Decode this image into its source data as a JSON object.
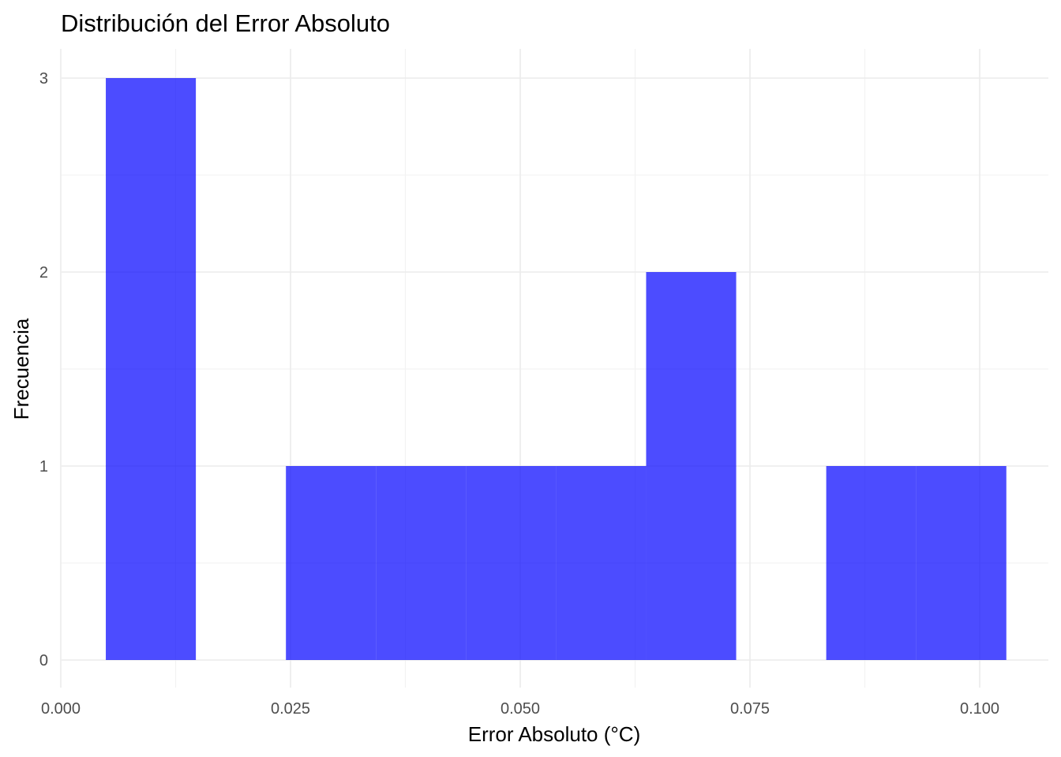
{
  "chart_data": {
    "type": "bar",
    "subtype": "histogram",
    "title": "Distribución del Error Absoluto",
    "xlabel": "Error Absoluto (°C)",
    "ylabel": "Frecuencia",
    "xlim": [
      0.0,
      0.1
    ],
    "ylim": [
      0,
      3
    ],
    "x_ticks": [
      0.0,
      0.025,
      0.05,
      0.075,
      0.1
    ],
    "x_tick_labels": [
      "0.000",
      "0.025",
      "0.050",
      "0.075",
      "0.100"
    ],
    "y_ticks": [
      0,
      1,
      2,
      3
    ],
    "y_tick_labels": [
      "0",
      "1",
      "2",
      "3"
    ],
    "grid": true,
    "bar_color": "#0000ff",
    "bar_opacity": 0.7,
    "bins": [
      {
        "x_start": 0.0049,
        "x_end": 0.0147,
        "count": 3
      },
      {
        "x_start": 0.0147,
        "x_end": 0.0245,
        "count": 0
      },
      {
        "x_start": 0.0245,
        "x_end": 0.0343,
        "count": 1
      },
      {
        "x_start": 0.0343,
        "x_end": 0.0441,
        "count": 1
      },
      {
        "x_start": 0.0441,
        "x_end": 0.0539,
        "count": 1
      },
      {
        "x_start": 0.0539,
        "x_end": 0.0637,
        "count": 1
      },
      {
        "x_start": 0.0637,
        "x_end": 0.0735,
        "count": 2
      },
      {
        "x_start": 0.0735,
        "x_end": 0.0833,
        "count": 0
      },
      {
        "x_start": 0.0833,
        "x_end": 0.0931,
        "count": 1
      },
      {
        "x_start": 0.0931,
        "x_end": 0.1029,
        "count": 1
      }
    ]
  }
}
